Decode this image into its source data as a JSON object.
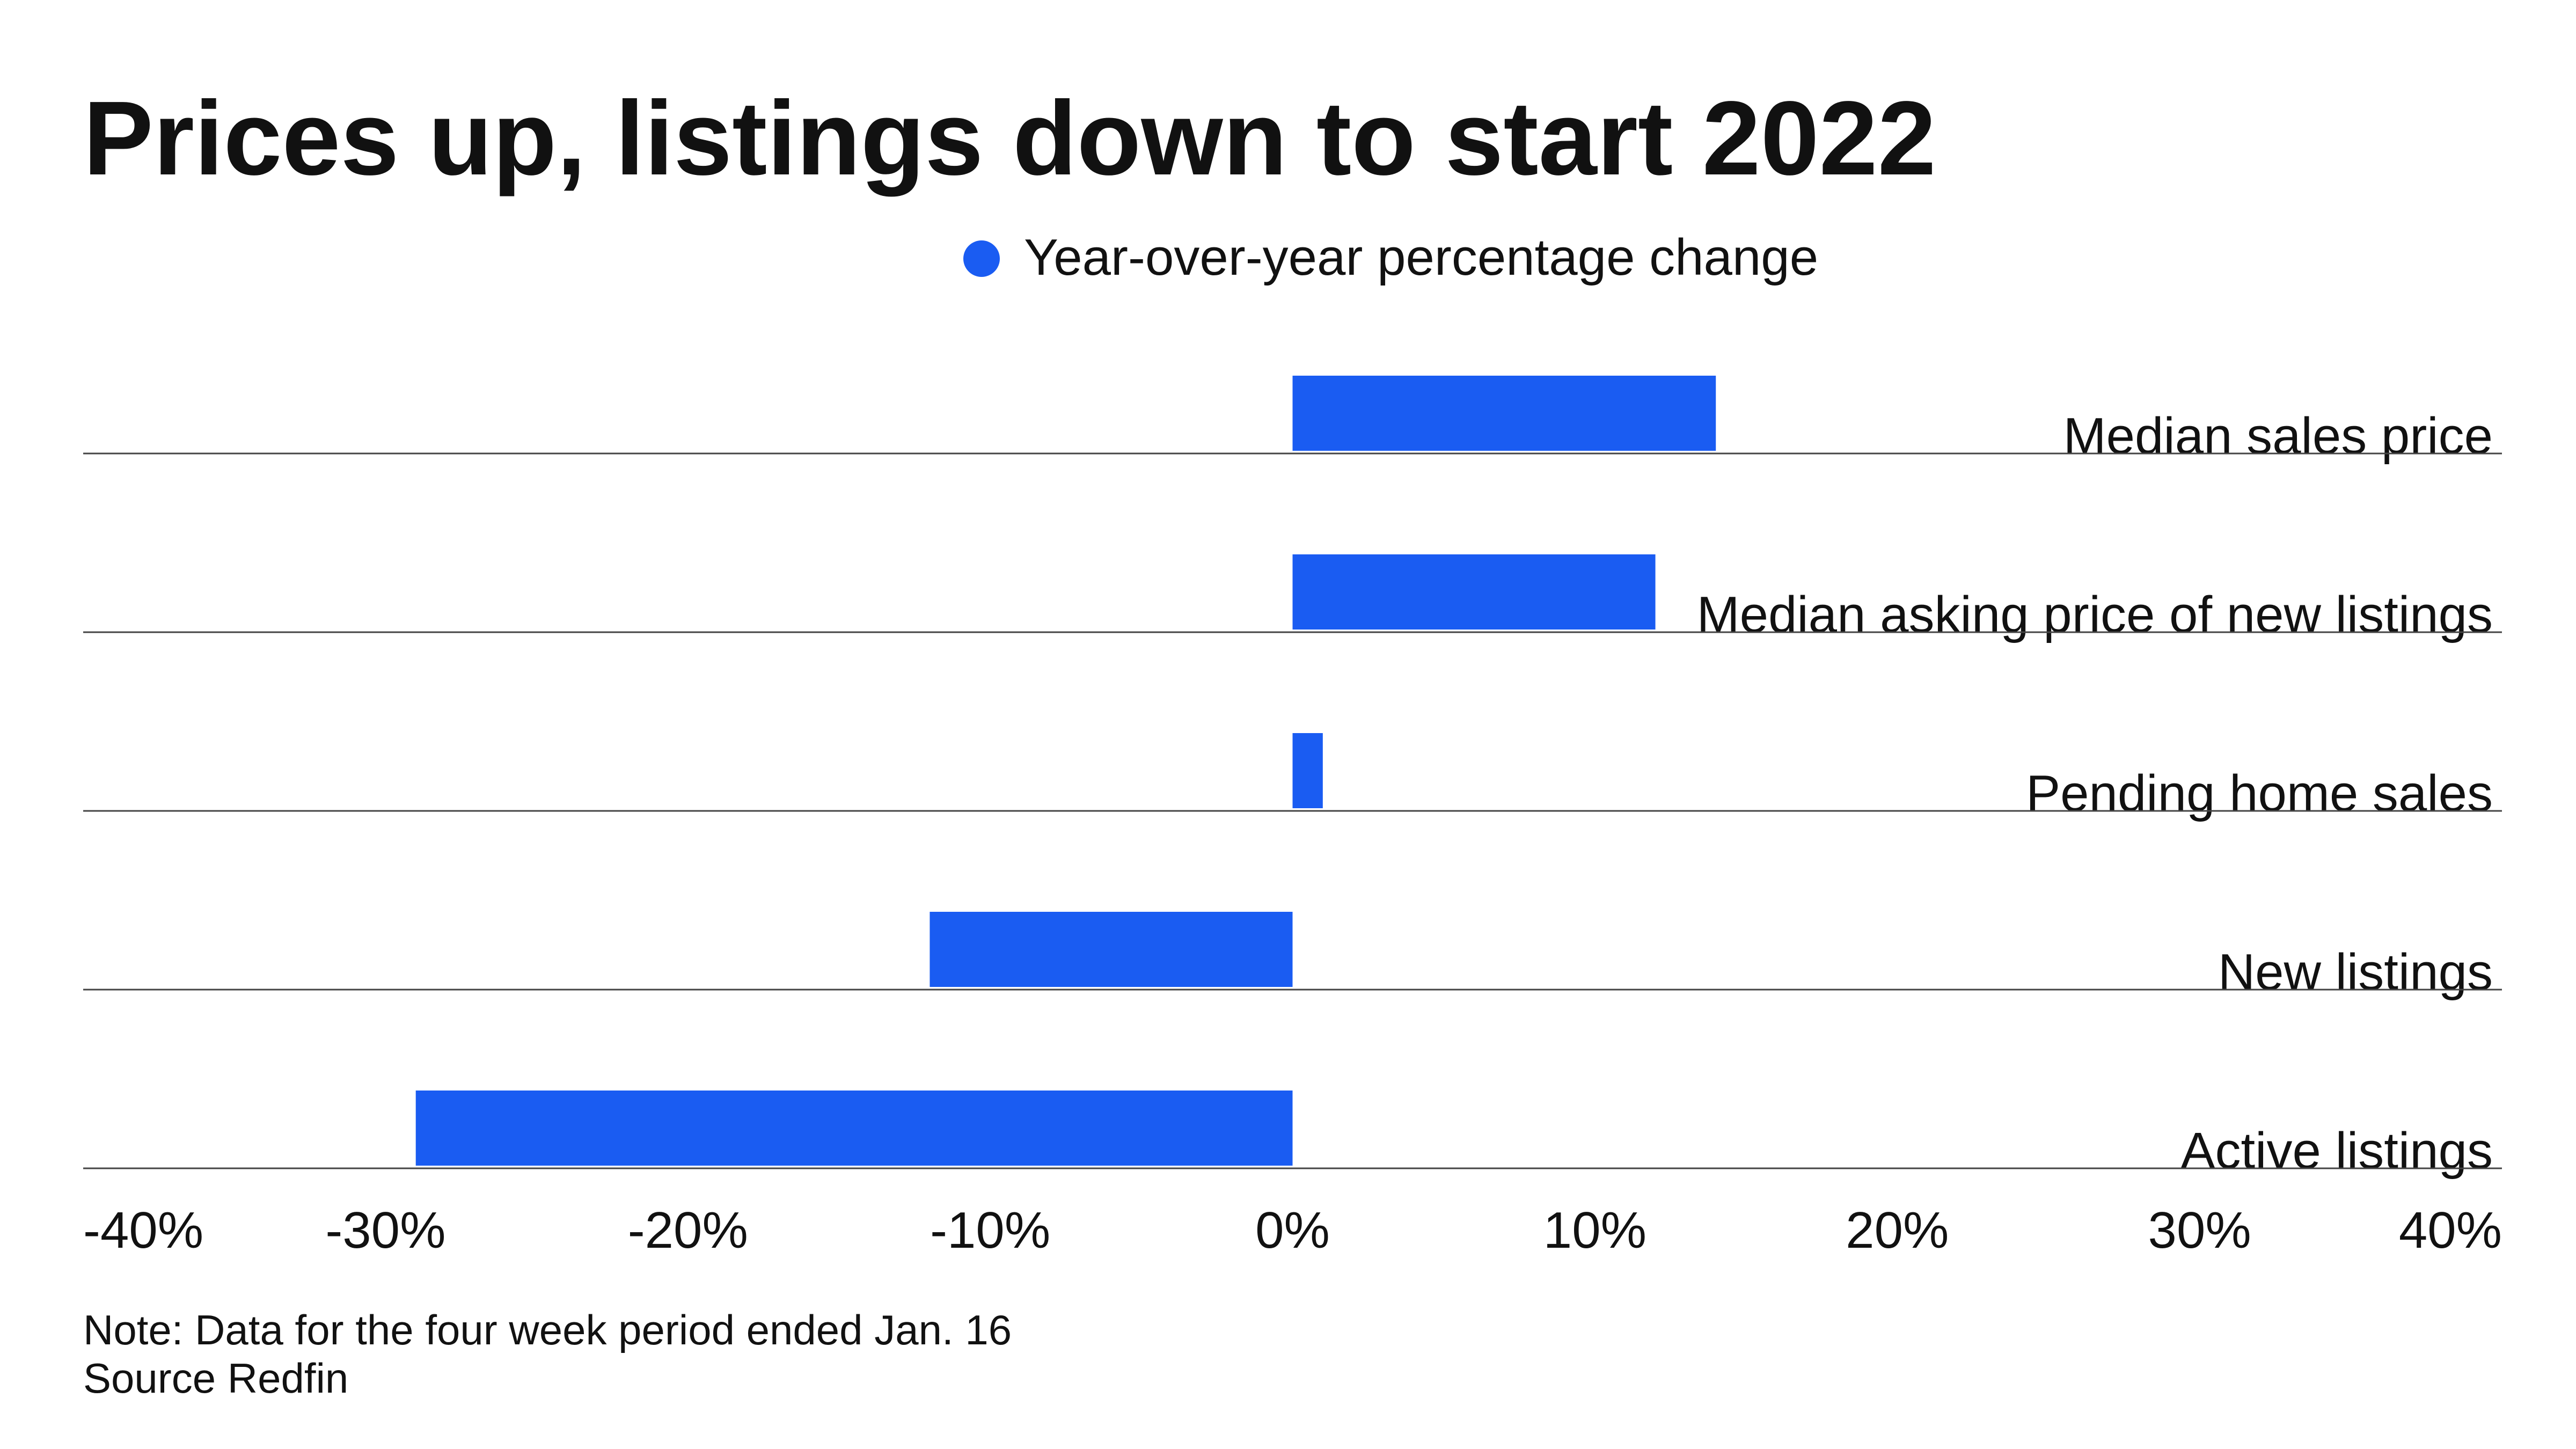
{
  "chart_data": {
    "type": "bar",
    "orientation": "horizontal",
    "title": "Prices up, listings down to start 2022",
    "legend": {
      "position": "top-center",
      "entries": [
        {
          "label": "Year-over-year percentage change",
          "color": "#1a5cf2"
        }
      ]
    },
    "categories": [
      "Median sales price",
      "Median asking price of new listings",
      "Pending home sales",
      "New listings",
      "Active listings"
    ],
    "series": [
      {
        "name": "Year-over-year percentage change",
        "values": [
          14,
          12,
          1,
          -12,
          -29
        ]
      }
    ],
    "xlim": [
      -40,
      40
    ],
    "ticks": [
      -40,
      -30,
      -20,
      -10,
      0,
      10,
      20,
      30,
      40
    ],
    "tick_labels": [
      "-40%",
      "-30%",
      "-20%",
      "-10%",
      "0%",
      "10%",
      "20%",
      "30%",
      "40%"
    ],
    "xlabel": "",
    "ylabel": "",
    "grid": false,
    "notes": [
      "Note: Data for the four week period ended Jan. 16",
      "Source Redfin"
    ]
  },
  "colors": {
    "bar": "#1a5cf2",
    "text": "#111111",
    "rule": "#444444",
    "background": "#ffffff"
  }
}
